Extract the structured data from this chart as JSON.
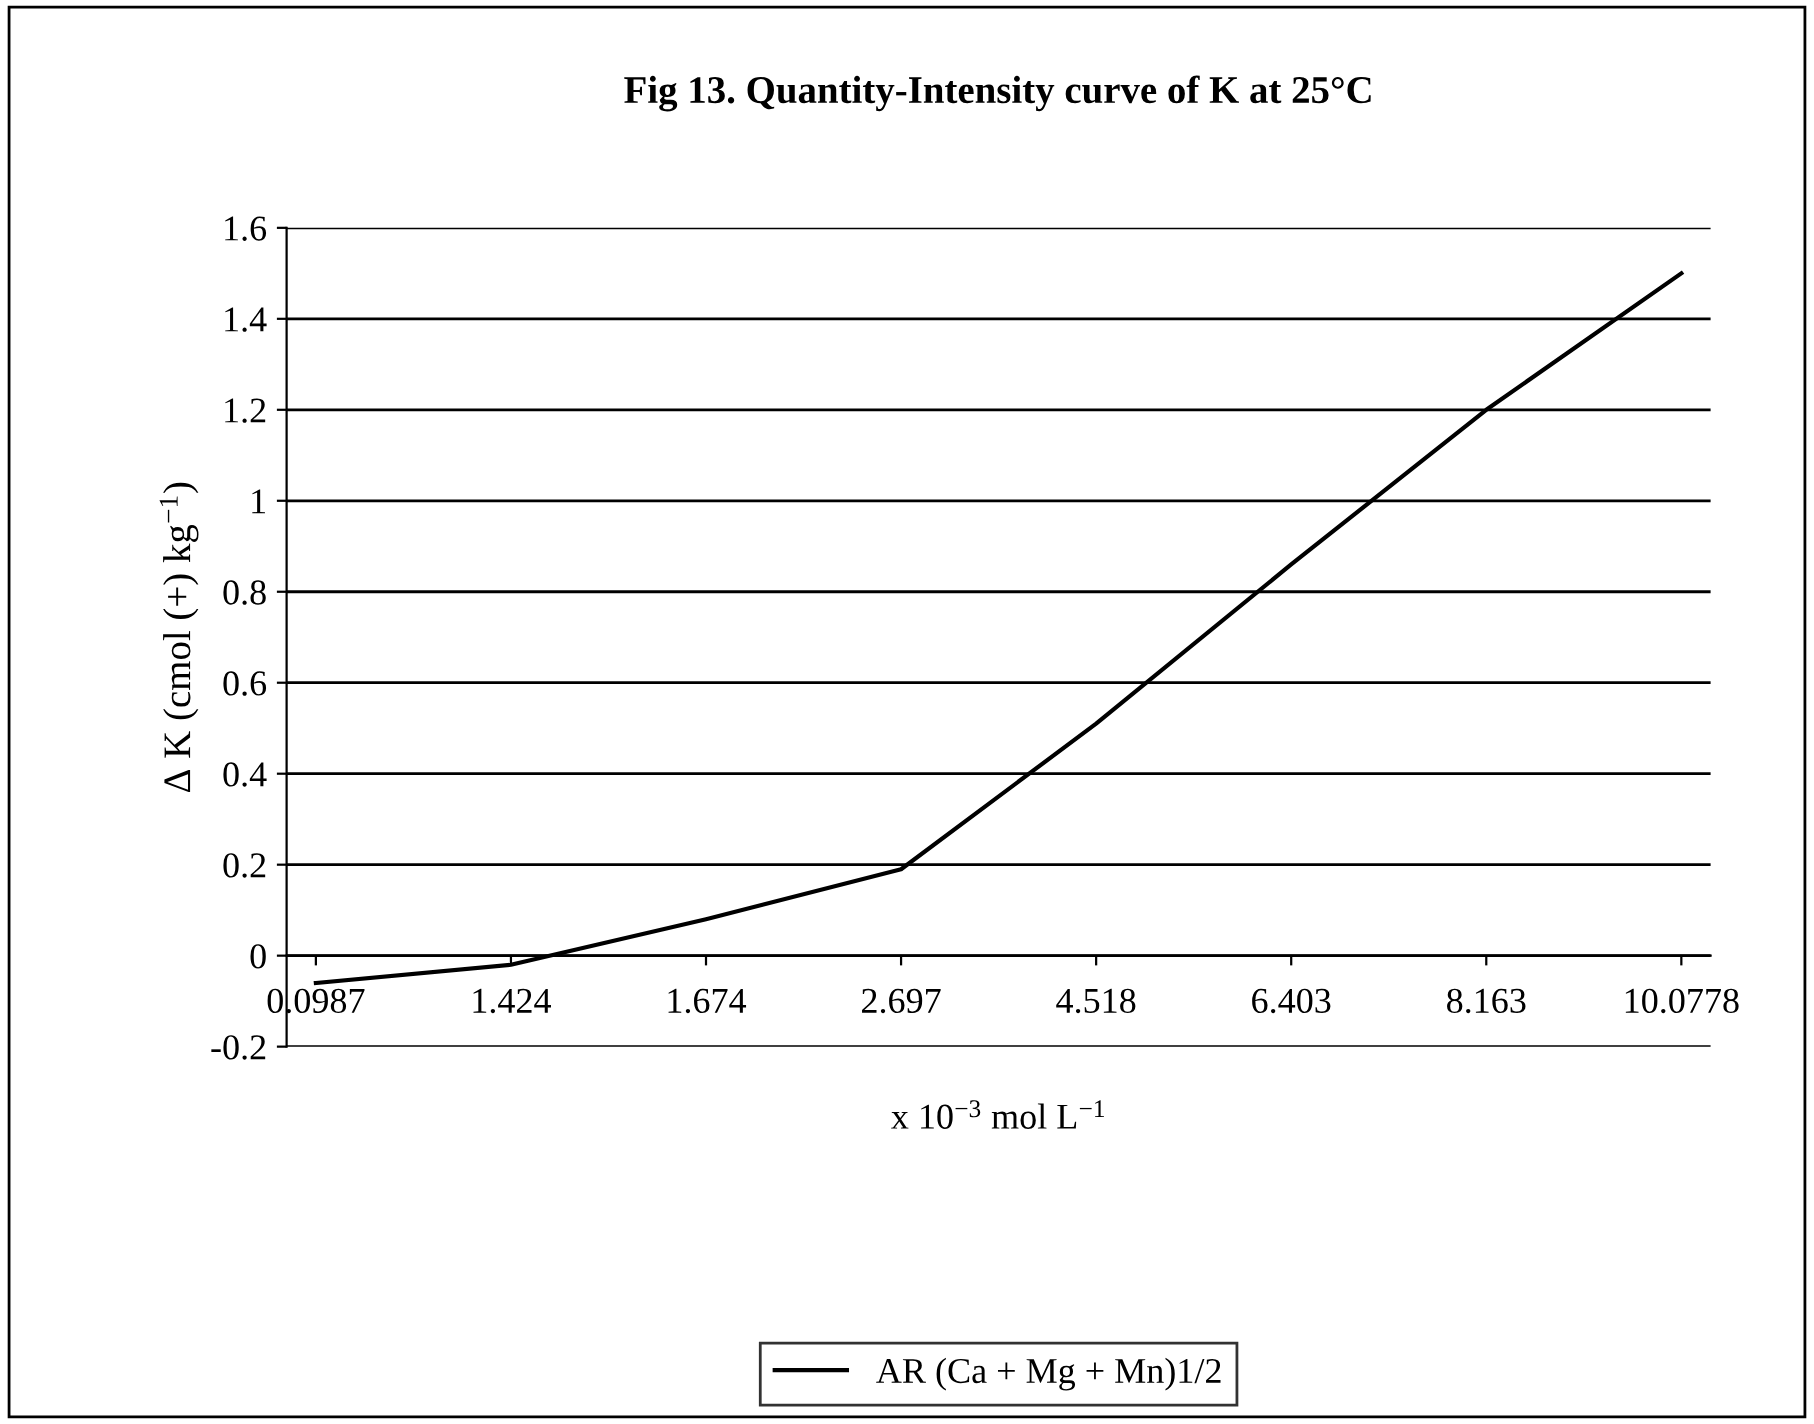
{
  "chart_data": {
    "type": "line",
    "title": "Fig 13. Quantity-Intensity curve of K at 25°C",
    "xlabel": "x 10$^{−3}$ mol L$^{−1}$",
    "ylabel": "Δ K (cmol (+) kg$^{−1}$)",
    "categories": [
      "0.0987",
      "1.424",
      "1.674",
      "2.697",
      "4.518",
      "6.403",
      "8.163",
      "10.0778"
    ],
    "series": [
      {
        "name": "AR (Ca + Mg + Mn)1/2",
        "color": "#000000",
        "values": [
          -0.06,
          -0.02,
          0.08,
          0.19,
          0.51,
          0.86,
          1.2,
          1.5
        ]
      }
    ],
    "ylim": [
      -0.2,
      1.6
    ],
    "yticks": [
      -0.2,
      0,
      0.2,
      0.4,
      0.6,
      0.8,
      1,
      1.2,
      1.4,
      1.6
    ],
    "grid": "y",
    "legend": "bottom",
    "marker": "none",
    "line_style": "solid"
  }
}
